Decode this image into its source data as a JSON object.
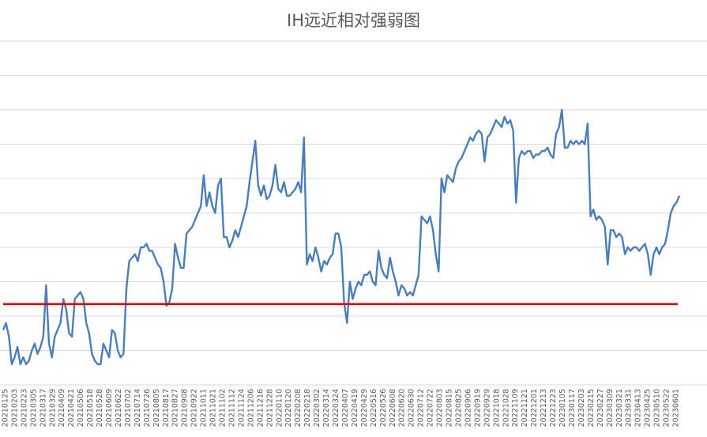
{
  "chart_data": {
    "type": "line",
    "title": "IH远近相对强弱图",
    "xlabel": "",
    "ylabel": "",
    "grid": true,
    "legend": "none",
    "ylim": [
      0,
      10
    ],
    "series_color": "#4a7ebb",
    "reference_color": "#e00000",
    "reference_line": {
      "value": 2.35
    },
    "tick_labels": [
      "20210125",
      "20210203",
      "20210223",
      "20210305",
      "20210317",
      "20210329",
      "20210409",
      "20210421",
      "20210506",
      "20210518",
      "20210528",
      "20210609",
      "20210622",
      "20210702",
      "20210714",
      "20210726",
      "20210805",
      "20210817",
      "20210827",
      "20210908",
      "20210922",
      "20211011",
      "20211021",
      "20211102",
      "20211112",
      "20211124",
      "20211206",
      "20211216",
      "20211228",
      "20220110",
      "20220120",
      "20220208",
      "20220218",
      "20220302",
      "20220314",
      "20220324",
      "20220407",
      "20220419",
      "20220429",
      "20220516",
      "20220526",
      "20220608",
      "20220620",
      "20220630",
      "20220712",
      "20220722",
      "20220803",
      "20220815",
      "20220825",
      "20220906",
      "20220919",
      "20220929",
      "20221018",
      "20221028",
      "20221109",
      "20221121",
      "20221201",
      "20221213",
      "20221223",
      "20230105",
      "20230117",
      "20230203",
      "20230215",
      "20230227",
      "20230309",
      "20230321",
      "20230331",
      "20230413",
      "20230425",
      "20230510",
      "20230522",
      "20230601"
    ],
    "series": [
      {
        "values": [
          1.6,
          1.8,
          1.4,
          0.6,
          0.8,
          1.1,
          0.6,
          0.8,
          0.6,
          0.7,
          1.0,
          1.2,
          0.9,
          1.1,
          1.4,
          2.9,
          1.2,
          0.8,
          1.4,
          1.6,
          1.8,
          2.5,
          2.2,
          1.5,
          1.4,
          2.5,
          2.6,
          2.7,
          2.5,
          1.8,
          1.5,
          0.9,
          0.7,
          0.6,
          0.6,
          1.2,
          1.0,
          0.8,
          1.6,
          1.5,
          1.0,
          0.8,
          0.9,
          2.8,
          3.6,
          3.7,
          3.8,
          3.6,
          4.0,
          4.0,
          4.1,
          3.9,
          3.9,
          3.7,
          3.5,
          3.4,
          3.0,
          2.3,
          2.4,
          2.8,
          4.1,
          3.7,
          3.4,
          3.4,
          4.4,
          4.5,
          4.6,
          4.8,
          5.0,
          5.2,
          6.1,
          5.2,
          5.6,
          5.2,
          5.0,
          5.8,
          6.0,
          4.3,
          4.3,
          4.0,
          4.2,
          4.5,
          4.3,
          4.6,
          4.9,
          5.2,
          5.9,
          6.5,
          7.1,
          5.8,
          5.5,
          5.8,
          5.4,
          5.5,
          5.8,
          6.4,
          5.7,
          5.6,
          5.9,
          5.5,
          5.5,
          5.6,
          5.7,
          5.9,
          5.6,
          7.2,
          3.5,
          3.8,
          3.6,
          4.0,
          3.7,
          3.3,
          3.6,
          3.5,
          3.7,
          3.8,
          4.4,
          4.4,
          4.0,
          2.4,
          1.8,
          3.0,
          2.5,
          2.8,
          3.0,
          2.9,
          3.2,
          3.2,
          3.3,
          3.0,
          2.9,
          3.9,
          3.4,
          3.2,
          3.1,
          3.7,
          3.3,
          3.0,
          2.6,
          2.9,
          2.8,
          2.6,
          2.7,
          2.6,
          2.9,
          3.2,
          4.9,
          4.8,
          4.7,
          4.9,
          4.5,
          3.8,
          3.3,
          6.0,
          5.6,
          6.1,
          6.0,
          5.9,
          6.3,
          6.5,
          6.6,
          6.8,
          7.0,
          7.2,
          7.1,
          7.3,
          7.4,
          7.3,
          6.5,
          7.2,
          7.3,
          7.5,
          7.7,
          7.6,
          7.5,
          7.8,
          7.6,
          7.7,
          7.4,
          5.3,
          6.6,
          6.8,
          6.7,
          6.8,
          6.8,
          6.6,
          6.7,
          6.7,
          6.8,
          6.8,
          6.9,
          6.7,
          6.6,
          7.3,
          7.5,
          8.0,
          6.9,
          6.9,
          7.1,
          7.0,
          7.1,
          7.0,
          7.1,
          7.0,
          7.6,
          4.9,
          5.1,
          4.8,
          4.9,
          4.8,
          4.6,
          3.5,
          4.5,
          4.5,
          4.3,
          4.4,
          4.3,
          3.8,
          4.0,
          3.9,
          4.0,
          4.0,
          3.9,
          4.0,
          4.1,
          3.8,
          3.2,
          3.8,
          4.0,
          3.8,
          4.0,
          4.1,
          4.5,
          5.0,
          5.2,
          5.3,
          5.5
        ]
      }
    ]
  }
}
